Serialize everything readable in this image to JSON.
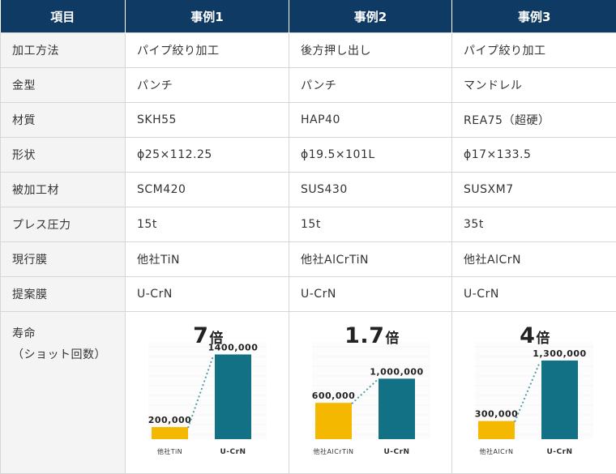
{
  "header": {
    "item": "項目",
    "case1": "事例1",
    "case2": "事例2",
    "case3": "事例3"
  },
  "rows": [
    {
      "label": "加工方法",
      "case1": "パイプ絞り加工",
      "case2": "後方押し出し",
      "case3": "パイプ絞り加工"
    },
    {
      "label": "金型",
      "case1": "パンチ",
      "case2": "パンチ",
      "case3": "マンドレル"
    },
    {
      "label": "材質",
      "case1": "SKH55",
      "case2": "HAP40",
      "case3": "REA75（超硬）"
    },
    {
      "label": "形状",
      "case1": "ϕ25×112.25",
      "case2": "ϕ19.5×101L",
      "case3": "ϕ17×133.5"
    },
    {
      "label": "被加工材",
      "case1": "SCM420",
      "case2": "SUS430",
      "case3": "SUSXM7"
    },
    {
      "label": "プレス圧力",
      "case1": "15t",
      "case2": "15t",
      "case3": "35t"
    },
    {
      "label": "現行膜",
      "case1": "他社TiN",
      "case2": "他社AlCrTiN",
      "case3": "他社AlCrN"
    },
    {
      "label": "提案膜",
      "case1": "U-CrN",
      "case2": "U-CrN",
      "case3": "U-CrN"
    }
  ],
  "life": {
    "label_line1": "寿命",
    "label_line2": "（ショット回数）"
  },
  "colors": {
    "header_bg": "#0f3a63",
    "current_bar": "#f5b800",
    "proposed_bar": "#137185",
    "connector": "#5a9aa8"
  },
  "chart_data": [
    {
      "type": "bar",
      "ratio_number": "7",
      "ratio_unit": "倍",
      "categories": [
        "他社TiN",
        "U-CrN"
      ],
      "values": [
        200000,
        1400000
      ],
      "value_labels": [
        "200,000",
        "1400,000"
      ],
      "ylim": [
        0,
        1500000
      ]
    },
    {
      "type": "bar",
      "ratio_number": "1.7",
      "ratio_unit": "倍",
      "categories": [
        "他社AlCrTiN",
        "U-CrN"
      ],
      "values": [
        600000,
        1000000
      ],
      "value_labels": [
        "600,000",
        "1,000,000"
      ],
      "ylim": [
        0,
        1500000
      ]
    },
    {
      "type": "bar",
      "ratio_number": "4",
      "ratio_unit": "倍",
      "categories": [
        "他社AlCrN",
        "U-CrN"
      ],
      "values": [
        300000,
        1300000
      ],
      "value_labels": [
        "300,000",
        "1,300,000"
      ],
      "ylim": [
        0,
        1500000
      ]
    }
  ]
}
